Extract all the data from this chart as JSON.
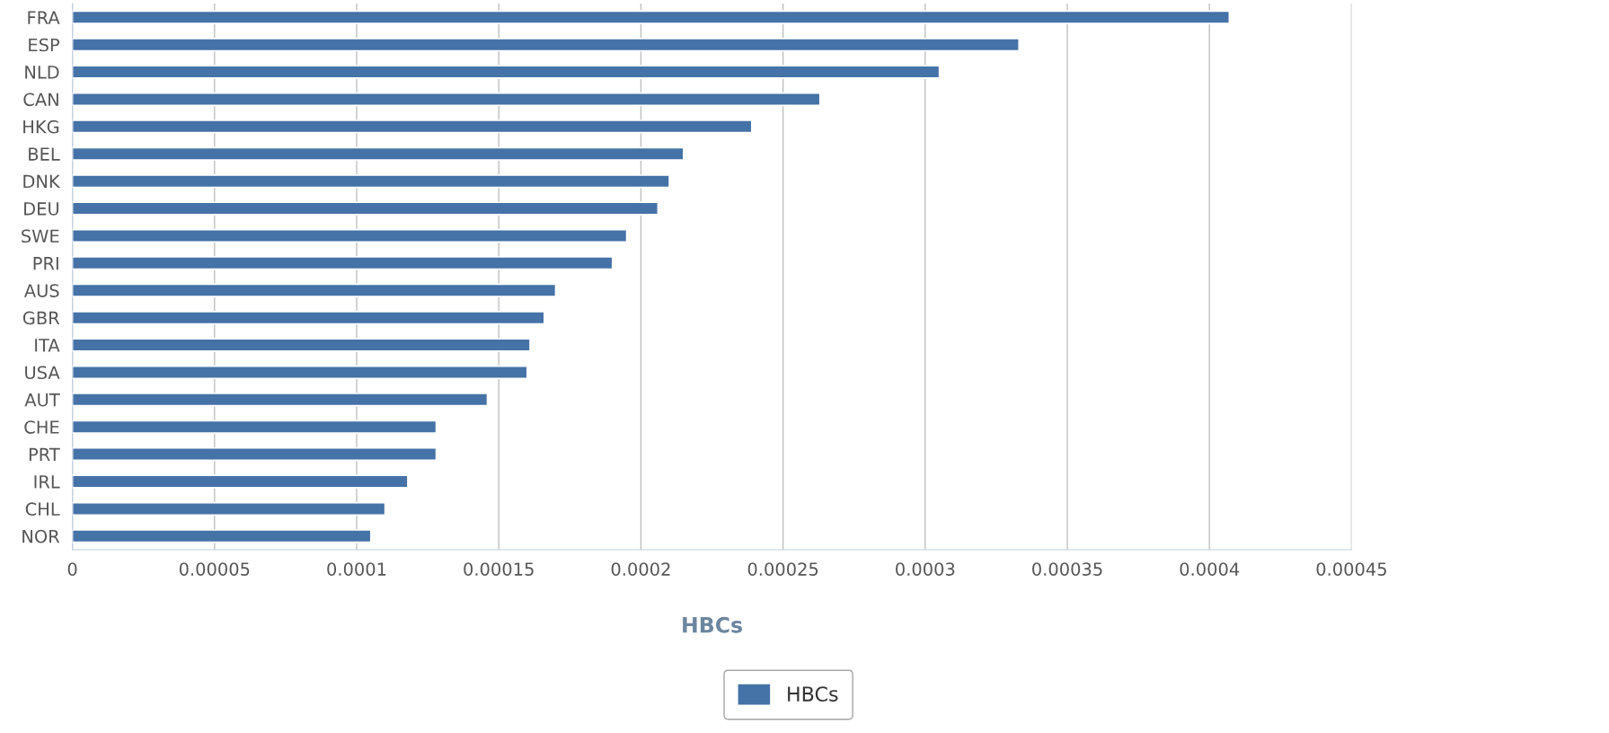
{
  "chart_data": {
    "type": "bar",
    "orientation": "horizontal",
    "xlabel": "HBCs",
    "categories": [
      "FRA",
      "ESP",
      "NLD",
      "CAN",
      "HKG",
      "BEL",
      "DNK",
      "DEU",
      "SWE",
      "PRI",
      "AUS",
      "GBR",
      "ITA",
      "USA",
      "AUT",
      "CHE",
      "PRT",
      "IRL",
      "CHL",
      "NOR"
    ],
    "series": [
      {
        "name": "HBCs",
        "color": "#4572a7",
        "values": [
          0.000407,
          0.000333,
          0.000305,
          0.000263,
          0.000239,
          0.000215,
          0.00021,
          0.000206,
          0.000195,
          0.00019,
          0.00017,
          0.000166,
          0.000161,
          0.00016,
          0.000146,
          0.000128,
          0.000128,
          0.000118,
          0.00011,
          0.000105
        ]
      }
    ],
    "xlim": [
      0,
      0.00045
    ],
    "xticks": [
      {
        "value": 0,
        "label": "0"
      },
      {
        "value": 5e-05,
        "label": "0.00005"
      },
      {
        "value": 0.0001,
        "label": "0.0001"
      },
      {
        "value": 0.00015,
        "label": "0.00015"
      },
      {
        "value": 0.0002,
        "label": "0.0002"
      },
      {
        "value": 0.00025,
        "label": "0.00025"
      },
      {
        "value": 0.0003,
        "label": "0.0003"
      },
      {
        "value": 0.00035,
        "label": "0.00035"
      },
      {
        "value": 0.0004,
        "label": "0.0004"
      },
      {
        "value": 0.00045,
        "label": "0.00045"
      }
    ],
    "grid": "x",
    "legend": "bottom"
  }
}
